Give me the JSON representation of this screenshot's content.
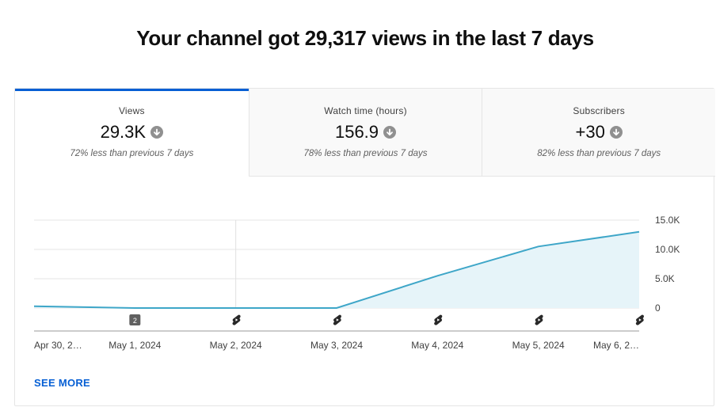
{
  "headline": "Your channel got 29,317 views in the last 7 days",
  "tabs": [
    {
      "label": "Views",
      "value": "29.3K",
      "trend_icon": "arrow-down-icon",
      "comparison": "72% less than previous 7 days",
      "active": true
    },
    {
      "label": "Watch time (hours)",
      "value": "156.9",
      "trend_icon": "arrow-down-icon",
      "comparison": "78% less than previous 7 days",
      "active": false
    },
    {
      "label": "Subscribers",
      "value": "+30",
      "trend_icon": "arrow-down-icon",
      "comparison": "82% less than previous 7 days",
      "active": false
    }
  ],
  "chart_data": {
    "type": "area",
    "x": [
      "Apr 30, 2…",
      "May 1, 2024",
      "May 2, 2024",
      "May 3, 2024",
      "May 4, 2024",
      "May 5, 2024",
      "May 6, 2…"
    ],
    "series": [
      {
        "values": [
          300,
          0,
          0,
          0,
          5500,
          10500,
          13000
        ]
      }
    ],
    "y_ticks": [
      "0",
      "5.0K",
      "10.0K",
      "15.0K"
    ],
    "ylim": [
      0,
      15000
    ],
    "grid": true,
    "accent_color": "#3ea6c8",
    "fill_color": "#e6f4f9",
    "markers": [
      {
        "x_index": 1,
        "type": "count-badge",
        "text": "2"
      },
      {
        "x_index": 2,
        "type": "shorts-icon"
      },
      {
        "x_index": 3,
        "type": "shorts-icon"
      },
      {
        "x_index": 4,
        "type": "shorts-icon"
      },
      {
        "x_index": 5,
        "type": "shorts-icon"
      },
      {
        "x_index": 6,
        "type": "shorts-icon"
      }
    ]
  },
  "see_more_label": "SEE MORE"
}
